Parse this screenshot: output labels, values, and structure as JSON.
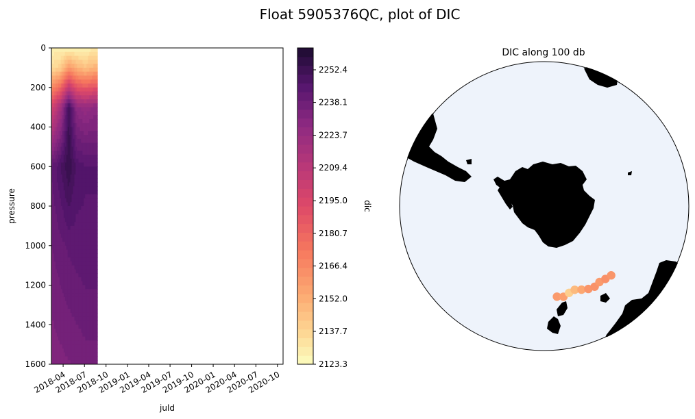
{
  "suptitle": "Float 5905376QC, plot of DIC",
  "chart_data": [
    {
      "type": "heatmap",
      "xlabel": "juld",
      "ylabel": "pressure",
      "x_ticks": [
        "2018-04",
        "2018-07",
        "2018-10",
        "2019-01",
        "2019-04",
        "2019-07",
        "2019-10",
        "2020-01",
        "2020-04",
        "2020-07",
        "2020-10"
      ],
      "xlim": [
        "2018-02-10",
        "2020-10-25"
      ],
      "y_ticks": [
        0,
        200,
        400,
        600,
        800,
        1000,
        1200,
        1400,
        1600
      ],
      "ylim": [
        1600,
        0
      ],
      "data_extent_x": [
        "2018-02-10",
        "2018-08-25"
      ],
      "profiles": [
        {
          "date": "2018-02-15",
          "surface": 2128,
          "p100": 2135,
          "p300": 2200,
          "p600": 2242,
          "p1000": 2238,
          "p1600": 2232
        },
        {
          "date": "2018-03-20",
          "surface": 2127,
          "p100": 2140,
          "p300": 2218,
          "p600": 2248,
          "p1000": 2240,
          "p1600": 2233
        },
        {
          "date": "2018-04-25",
          "surface": 2126,
          "p100": 2160,
          "p300": 2252,
          "p600": 2255,
          "p1000": 2242,
          "p1600": 2234
        },
        {
          "date": "2018-05-30",
          "surface": 2125,
          "p100": 2150,
          "p300": 2228,
          "p600": 2247,
          "p1000": 2243,
          "p1600": 2235
        },
        {
          "date": "2018-07-05",
          "surface": 2126,
          "p100": 2145,
          "p300": 2225,
          "p600": 2245,
          "p1000": 2244,
          "p1600": 2236
        },
        {
          "date": "2018-08-10",
          "surface": 2130,
          "p100": 2150,
          "p300": 2228,
          "p600": 2245,
          "p1000": 2244,
          "p1600": 2236
        }
      ],
      "colorbar": {
        "label": "dic",
        "ticks": [
          2123.3,
          2137.7,
          2152.0,
          2166.4,
          2180.7,
          2195.0,
          2209.4,
          2223.7,
          2238.1,
          2252.4
        ],
        "range": [
          2123.3,
          2262.0
        ],
        "colormap": "magma_r"
      }
    },
    {
      "type": "scatter",
      "title": "DIC along 100 db",
      "projection": "south-polar-stereographic",
      "ocean_color": "#eef3fb",
      "land_color": "#000000",
      "points": [
        {
          "lon": 8,
          "lat": -52,
          "dic": 2160
        },
        {
          "lon": 12,
          "lat": -51.5,
          "dic": 2158
        },
        {
          "lon": 16,
          "lat": -52.5,
          "dic": 2140
        },
        {
          "lon": 20,
          "lat": -53,
          "dic": 2148
        },
        {
          "lon": 24,
          "lat": -52,
          "dic": 2155
        },
        {
          "lon": 28,
          "lat": -51,
          "dic": 2162
        },
        {
          "lon": 32,
          "lat": -50.5,
          "dic": 2163
        },
        {
          "lon": 36,
          "lat": -51,
          "dic": 2160
        },
        {
          "lon": 40,
          "lat": -50.5,
          "dic": 2164
        },
        {
          "lon": 44,
          "lat": -50,
          "dic": 2162
        }
      ]
    }
  ]
}
